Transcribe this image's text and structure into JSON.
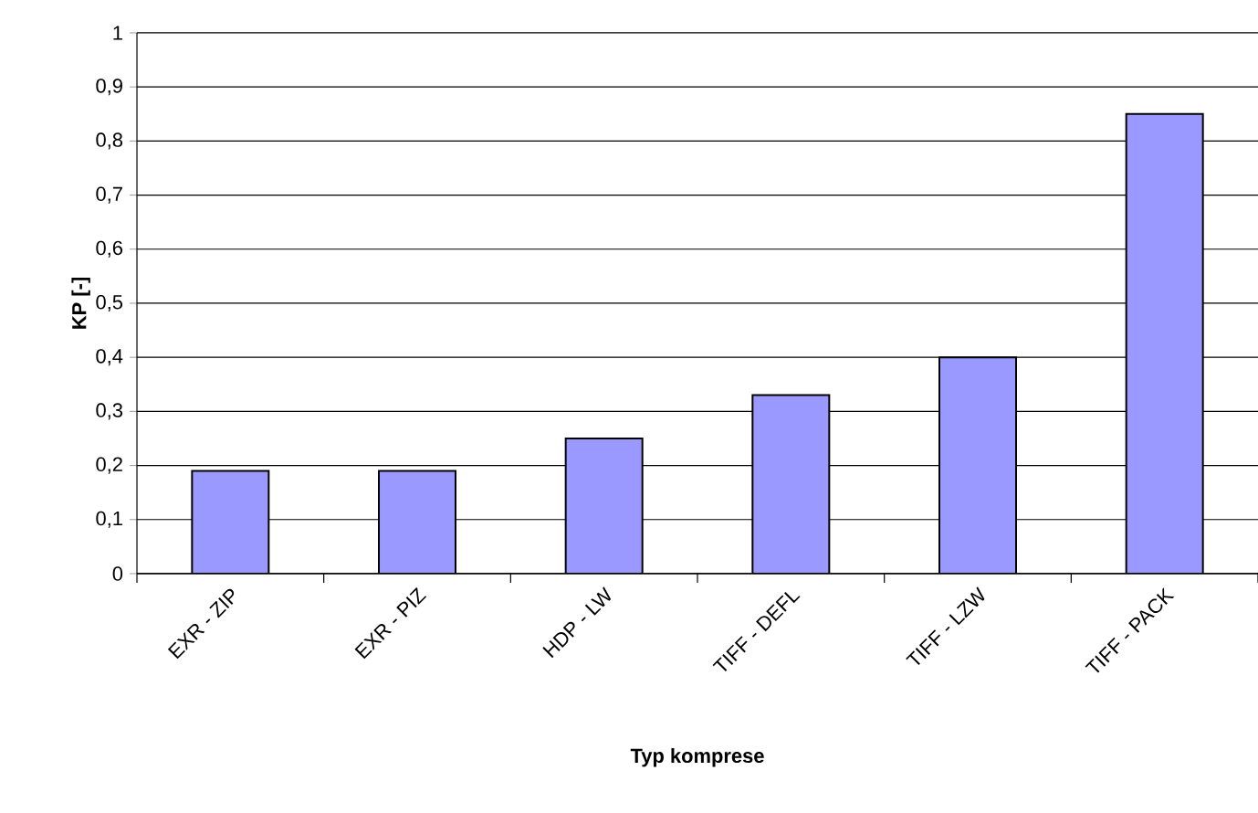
{
  "chart_data": {
    "type": "bar",
    "xlabel": "Typ komprese",
    "ylabel": "KP [-]",
    "categories": [
      "EXR - ZIP",
      "EXR - PIZ",
      "HDP - LW",
      "TIFF - DEFL",
      "TIFF - LZW",
      "TIFF - PACK"
    ],
    "values": [
      0.19,
      0.19,
      0.25,
      0.33,
      0.4,
      0.85
    ],
    "color": "#9999ff",
    "ylim": [
      0,
      1
    ],
    "yticks": [
      0,
      {
        "value": 0.1,
        "label": "0,1"
      },
      {
        "value": 0.2,
        "label": "0,2"
      },
      {
        "value": 0.3,
        "label": "0,3"
      },
      {
        "value": 0.4,
        "label": "0,4"
      },
      {
        "value": 0.5,
        "label": "0,5"
      },
      {
        "value": 0.6,
        "label": "0,6"
      },
      {
        "value": 0.7,
        "label": "0,7"
      },
      {
        "value": 0.8,
        "label": "0,8"
      },
      {
        "value": 0.9,
        "label": "0,9"
      },
      1
    ],
    "grid": "y"
  }
}
